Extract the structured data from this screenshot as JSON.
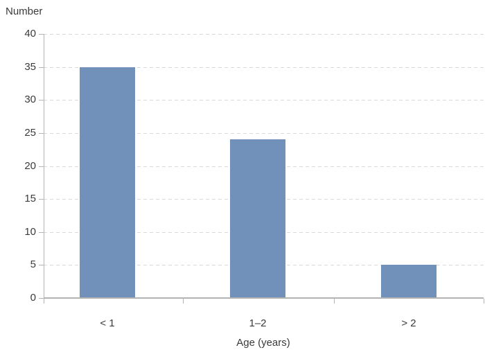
{
  "chart_data": {
    "type": "bar",
    "title": "",
    "ylabel": "Number",
    "xlabel": "Age (years)",
    "categories": [
      "< 1",
      "1–2",
      "> 2"
    ],
    "values": [
      35,
      24,
      5
    ],
    "ylim": [
      0,
      40
    ],
    "yticks": [
      0,
      5,
      10,
      15,
      20,
      25,
      30,
      35,
      40
    ],
    "grid": "horizontal-dashed",
    "legend": "none",
    "colors": {
      "bar": "#7191BB",
      "gridline": "#D9D9D9",
      "axis": "#B3B3B3",
      "text": "#3A3A3A",
      "background": "#FFFFFF"
    }
  }
}
